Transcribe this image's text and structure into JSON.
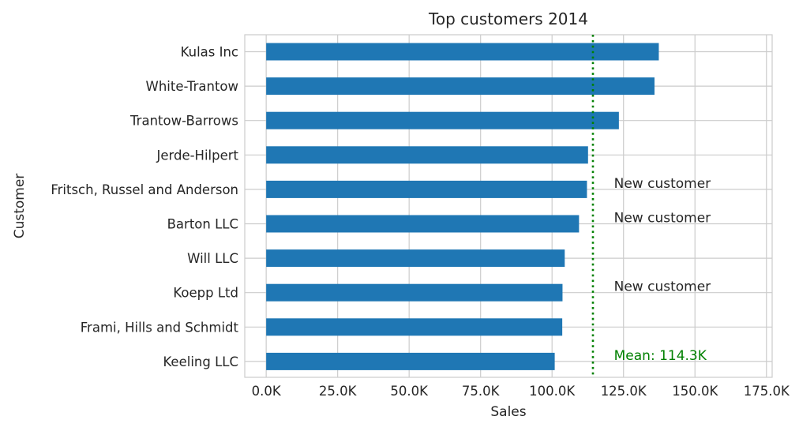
{
  "chart_data": {
    "type": "bar",
    "orientation": "horizontal",
    "title": "Top customers 2014",
    "xlabel": "Sales",
    "ylabel": "Customer",
    "categories": [
      "Kulas Inc",
      "White-Trantow",
      "Trantow-Barrows",
      "Jerde-Hilpert",
      "Fritsch, Russel and Anderson",
      "Barton LLC",
      "Will LLC",
      "Koepp Ltd",
      "Frami, Hills and Schmidt",
      "Keeling LLC"
    ],
    "values": [
      137351,
      135841,
      123381,
      112591,
      112215,
      109438,
      104437,
      103660,
      103569,
      100934
    ],
    "xlim": [
      -7500,
      177000
    ],
    "xticks": [
      0,
      25000,
      50000,
      75000,
      100000,
      125000,
      150000,
      175000
    ],
    "xtick_labels": [
      "0.0K",
      "25.0K",
      "50.0K",
      "75.0K",
      "100.0K",
      "125.0K",
      "150.0K",
      "175.0K"
    ],
    "grid": true,
    "bar_color": "#1f77b4",
    "mean_line": {
      "value": 114300,
      "label": "Mean: 114.3K",
      "color": "#008000",
      "style": "dotted"
    },
    "annotations": [
      {
        "text": "New customer",
        "category_index": 4,
        "x": 120000
      },
      {
        "text": "New customer",
        "category_index": 5,
        "x": 120000
      },
      {
        "text": "New customer",
        "category_index": 7,
        "x": 120000
      }
    ]
  }
}
